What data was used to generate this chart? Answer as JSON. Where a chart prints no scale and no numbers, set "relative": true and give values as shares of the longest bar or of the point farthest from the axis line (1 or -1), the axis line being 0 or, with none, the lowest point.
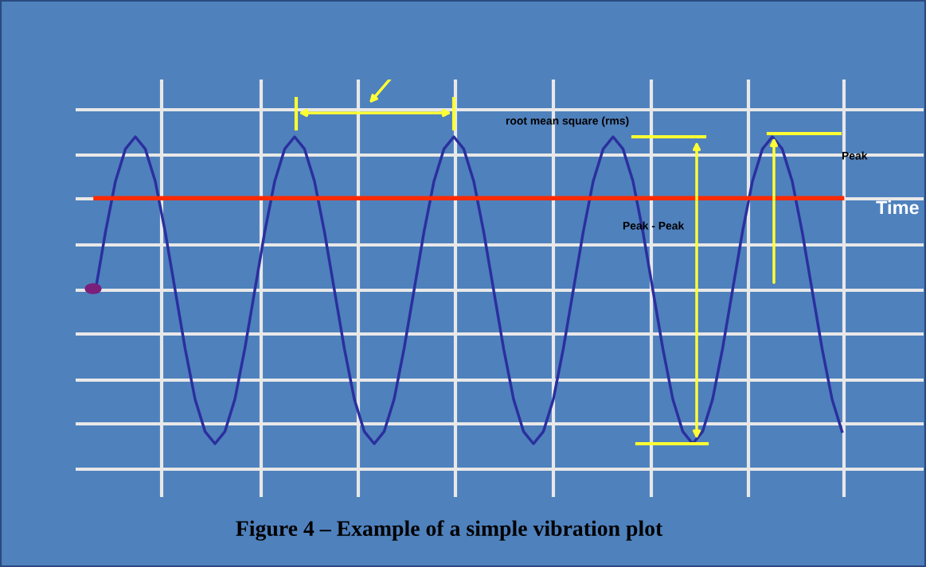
{
  "chart_data": {
    "type": "line",
    "relative": true,
    "title": "Figure 4 – Example of a simple vibration plot",
    "xlabel": "Time",
    "categories": [
      null,
      null,
      null,
      null,
      null,
      null,
      null,
      null,
      null,
      null,
      null,
      null,
      null,
      null,
      null,
      null,
      null,
      null,
      null,
      null,
      null,
      null,
      null,
      null,
      null,
      null,
      null,
      null,
      null,
      null,
      null,
      null,
      null,
      null,
      null,
      null,
      null,
      null,
      null,
      null,
      null,
      null,
      null,
      null,
      null,
      null,
      null,
      null,
      null,
      null,
      null,
      null,
      null,
      null,
      null,
      null,
      null,
      null,
      null,
      null,
      null,
      null,
      null,
      null,
      null,
      null,
      null,
      null,
      null,
      null,
      null,
      null,
      null,
      null,
      null,
      null
    ],
    "series": [
      {
        "color": "#2b2f9e",
        "values": [
          0,
          0.38,
          0.71,
          0.92,
          1,
          0.92,
          0.71,
          0.38,
          0,
          -0.38,
          -0.71,
          -0.92,
          -1,
          -0.92,
          -0.71,
          -0.38,
          0,
          0.38,
          0.71,
          0.92,
          1,
          0.92,
          0.71,
          0.38,
          0,
          -0.38,
          -0.71,
          -0.92,
          -1,
          -0.92,
          -0.71,
          -0.38,
          0,
          0.38,
          0.71,
          0.92,
          1,
          0.92,
          0.71,
          0.38,
          0,
          -0.38,
          -0.71,
          -0.92,
          -1,
          -0.92,
          -0.71,
          -0.38,
          0,
          0.38,
          0.71,
          0.92,
          1,
          0.92,
          0.71,
          0.38,
          0,
          -0.38,
          -0.71,
          -0.92,
          -1,
          -0.92,
          -0.71,
          -0.38,
          0,
          0.38,
          0.71,
          0.92,
          1,
          0.92,
          0.71,
          0.38,
          0,
          -0.38,
          -0.71,
          -0.92
        ]
      },
      {
        "color": "#ff2a00",
        "values": [
          0.6,
          0.6,
          0.6,
          0.6,
          0.6,
          0.6,
          0.6,
          0.6,
          0.6,
          0.6,
          0.6,
          0.6,
          0.6,
          0.6,
          0.6,
          0.6,
          0.6,
          0.6,
          0.6,
          0.6,
          0.6,
          0.6,
          0.6,
          0.6,
          0.6,
          0.6,
          0.6,
          0.6,
          0.6,
          0.6,
          0.6,
          0.6,
          0.6,
          0.6,
          0.6,
          0.6,
          0.6,
          0.6,
          0.6,
          0.6,
          0.6,
          0.6,
          0.6,
          0.6,
          0.6,
          0.6,
          0.6,
          0.6,
          0.6,
          0.6,
          0.6,
          0.6,
          0.6,
          0.6,
          0.6,
          0.6,
          0.6,
          0.6,
          0.6,
          0.6,
          0.6,
          0.6,
          0.6,
          0.6,
          0.6,
          0.6,
          0.6,
          0.6,
          0.6,
          0.6,
          0.6,
          0.6,
          0.6,
          0.6,
          0.6,
          0.6
        ]
      }
    ],
    "annotations": [
      "root mean square (rms)",
      "Peak - Peak",
      "Peak"
    ],
    "grid": true
  }
}
